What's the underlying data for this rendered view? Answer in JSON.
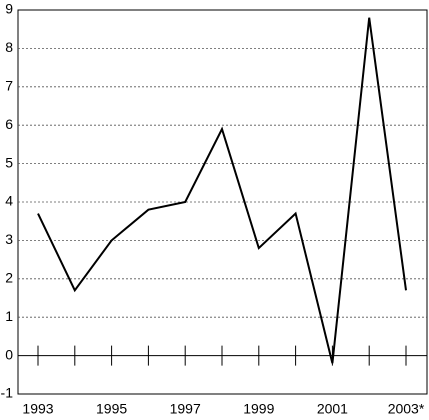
{
  "chart_data": {
    "type": "line",
    "categories": [
      "1993",
      null,
      "1995",
      null,
      "1997",
      null,
      "1999",
      null,
      "2001",
      null,
      "2003*"
    ],
    "series": [
      {
        "color": "#000000",
        "values": [
          3.7,
          1.7,
          3.0,
          3.8,
          4.0,
          5.9,
          2.8,
          3.7,
          -0.2,
          8.8,
          1.7
        ]
      }
    ],
    "ylim": [
      -1,
      9
    ],
    "yticks": [
      -1,
      0,
      1,
      2,
      3,
      4,
      5,
      6,
      7,
      8,
      9
    ],
    "grid": true
  }
}
